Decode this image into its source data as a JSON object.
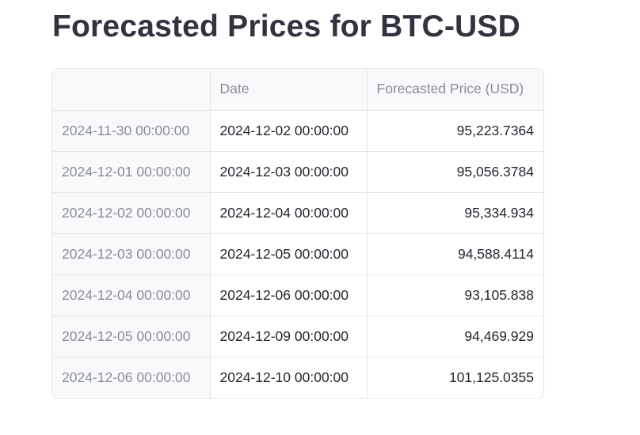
{
  "page": {
    "title": "Forecasted Prices for BTC-USD"
  },
  "table": {
    "columns": {
      "index": "",
      "date": "Date",
      "price": "Forecasted Price (USD)"
    },
    "rows": [
      {
        "index": "2024-11-30 00:00:00",
        "date": "2024-12-02 00:00:00",
        "price": "95,223.7364"
      },
      {
        "index": "2024-12-01 00:00:00",
        "date": "2024-12-03 00:00:00",
        "price": "95,056.3784"
      },
      {
        "index": "2024-12-02 00:00:00",
        "date": "2024-12-04 00:00:00",
        "price": "95,334.934"
      },
      {
        "index": "2024-12-03 00:00:00",
        "date": "2024-12-05 00:00:00",
        "price": "94,588.4114"
      },
      {
        "index": "2024-12-04 00:00:00",
        "date": "2024-12-06 00:00:00",
        "price": "93,105.838"
      },
      {
        "index": "2024-12-05 00:00:00",
        "date": "2024-12-09 00:00:00",
        "price": "94,469.929"
      },
      {
        "index": "2024-12-06 00:00:00",
        "date": "2024-12-10 00:00:00",
        "price": "101,125.0355"
      }
    ]
  }
}
